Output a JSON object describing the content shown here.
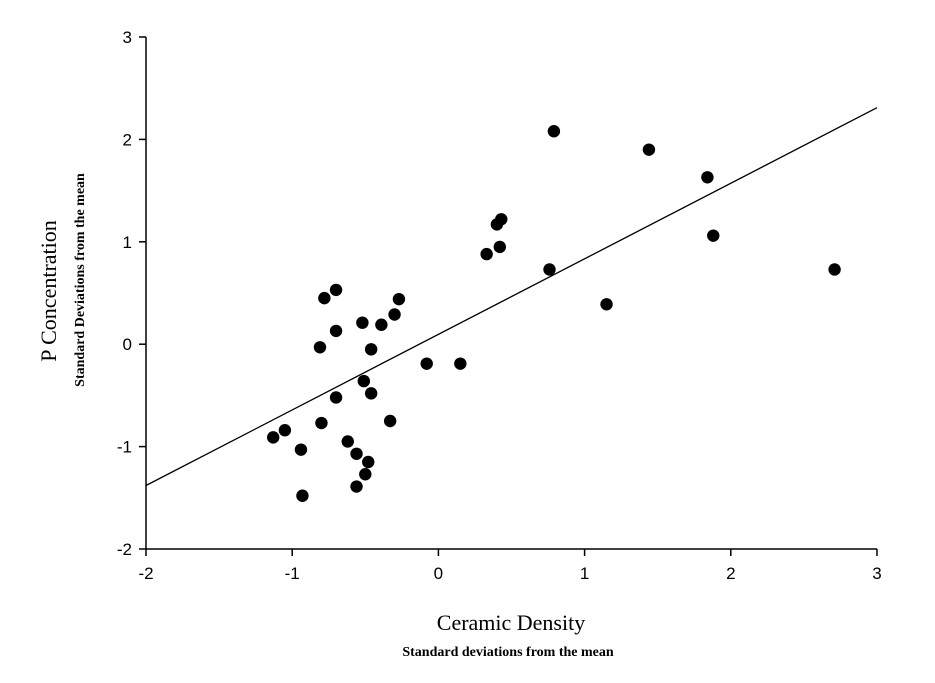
{
  "chart_data": {
    "type": "scatter",
    "xlabel": "Ceramic Density",
    "xlabel_sub": "Standard deviations from the mean",
    "ylabel": "P Concentration",
    "ylabel_sub": "Standard Deviations from the mean",
    "xlim": [
      -2,
      3
    ],
    "ylim": [
      -2,
      3
    ],
    "xticks": [
      -2,
      -1,
      0,
      1,
      2,
      3
    ],
    "yticks": [
      -2,
      -1,
      0,
      1,
      2,
      3
    ],
    "grid": false,
    "legend": "none",
    "point_color": "#000000",
    "fit_line": {
      "x": [
        -2,
        3
      ],
      "y": [
        -1.38,
        2.31
      ]
    },
    "points": [
      {
        "x": -1.13,
        "y": -0.91
      },
      {
        "x": -1.05,
        "y": -0.84
      },
      {
        "x": -0.94,
        "y": -1.03
      },
      {
        "x": -0.93,
        "y": -1.48
      },
      {
        "x": -0.81,
        "y": -0.03
      },
      {
        "x": -0.8,
        "y": -0.77
      },
      {
        "x": -0.78,
        "y": 0.45
      },
      {
        "x": -0.7,
        "y": 0.53
      },
      {
        "x": -0.7,
        "y": 0.13
      },
      {
        "x": -0.7,
        "y": -0.52
      },
      {
        "x": -0.62,
        "y": -0.95
      },
      {
        "x": -0.56,
        "y": -1.07
      },
      {
        "x": -0.56,
        "y": -1.39
      },
      {
        "x": -0.52,
        "y": 0.21
      },
      {
        "x": -0.51,
        "y": -0.36
      },
      {
        "x": -0.5,
        "y": -1.27
      },
      {
        "x": -0.48,
        "y": -1.15
      },
      {
        "x": -0.46,
        "y": -0.05
      },
      {
        "x": -0.46,
        "y": -0.48
      },
      {
        "x": -0.39,
        "y": 0.19
      },
      {
        "x": -0.33,
        "y": -0.75
      },
      {
        "x": -0.3,
        "y": 0.29
      },
      {
        "x": -0.27,
        "y": 0.44
      },
      {
        "x": -0.08,
        "y": -0.19
      },
      {
        "x": 0.15,
        "y": -0.19
      },
      {
        "x": 0.33,
        "y": 0.88
      },
      {
        "x": 0.4,
        "y": 1.17
      },
      {
        "x": 0.42,
        "y": 0.95
      },
      {
        "x": 0.43,
        "y": 1.22
      },
      {
        "x": 0.76,
        "y": 0.73
      },
      {
        "x": 0.79,
        "y": 2.08
      },
      {
        "x": 1.15,
        "y": 0.39
      },
      {
        "x": 1.44,
        "y": 1.9
      },
      {
        "x": 1.84,
        "y": 1.63
      },
      {
        "x": 1.88,
        "y": 1.06
      },
      {
        "x": 2.71,
        "y": 0.73
      }
    ]
  }
}
